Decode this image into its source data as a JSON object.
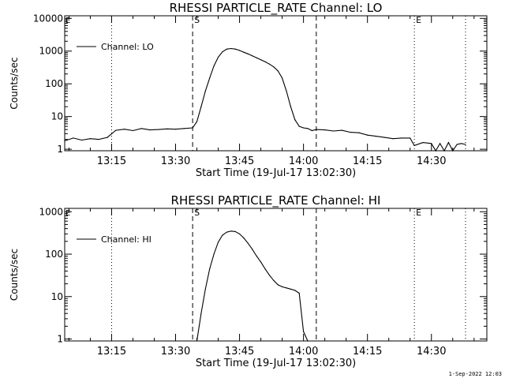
{
  "footer": {
    "timestamp": "1-Sep-2022 12:03"
  },
  "chart_data": [
    {
      "type": "line",
      "title": "RHESSI PARTICLE_RATE Channel: LO",
      "xlabel": "Start Time (19-Jul-17 13:02:30)",
      "ylabel": "Counts/sec",
      "yscale": "log",
      "ylim": [
        0.9,
        12000
      ],
      "xlim": [
        "13:04",
        "14:43"
      ],
      "x_ticks": [
        "13:15",
        "13:30",
        "13:45",
        "14:00",
        "14:15",
        "14:30"
      ],
      "y_ticks": [
        "1",
        "10",
        "100",
        "1000",
        "10000"
      ],
      "legend": {
        "position": "top-left",
        "entries": [
          "Channel: LO"
        ]
      },
      "markers": [
        {
          "label": "S",
          "time": "13:34",
          "style": "dashed"
        },
        {
          "time": "14:03",
          "style": "dashed"
        },
        {
          "time": "13:15",
          "style": "dotted"
        },
        {
          "label": "E",
          "time": "14:26",
          "style": "dotted"
        },
        {
          "time": "14:38",
          "style": "dotted"
        }
      ],
      "series": [
        {
          "name": "Channel: LO",
          "x": [
            "13:04",
            "13:06",
            "13:08",
            "13:10",
            "13:12",
            "13:14",
            "13:16",
            "13:18",
            "13:20",
            "13:22",
            "13:24",
            "13:26",
            "13:28",
            "13:30",
            "13:32",
            "13:34",
            "13:35",
            "13:36",
            "13:37",
            "13:38",
            "13:39",
            "13:40",
            "13:41",
            "13:42",
            "13:43",
            "13:44",
            "13:45",
            "13:46",
            "13:47",
            "13:48",
            "13:49",
            "13:50",
            "13:51",
            "13:52",
            "13:53",
            "13:54",
            "13:55",
            "13:56",
            "13:57",
            "13:58",
            "13:59",
            "14:00",
            "14:01",
            "14:02",
            "14:03",
            "14:05",
            "14:07",
            "14:09",
            "14:11",
            "14:13",
            "14:15",
            "14:17",
            "14:19",
            "14:21",
            "14:23",
            "14:25",
            "14:26",
            "14:28",
            "14:30",
            "14:31",
            "14:32",
            "14:33",
            "14:34",
            "14:35",
            "14:36",
            "14:37",
            "14:38"
          ],
          "y": [
            1.8,
            2.2,
            1.9,
            2.1,
            2.0,
            2.3,
            3.8,
            4.1,
            3.7,
            4.3,
            3.9,
            4.0,
            4.2,
            4.1,
            4.3,
            4.5,
            7,
            20,
            60,
            150,
            350,
            650,
            950,
            1150,
            1200,
            1150,
            1050,
            920,
            820,
            720,
            620,
            540,
            470,
            400,
            330,
            250,
            150,
            60,
            20,
            8,
            5,
            4.5,
            4.3,
            3.7,
            4.0,
            3.9,
            3.6,
            3.8,
            3.3,
            3.2,
            2.7,
            2.5,
            2.3,
            2.1,
            2.2,
            2.2,
            1.3,
            1.6,
            1.5,
            0.9,
            1.5,
            0.9,
            1.6,
            0.9,
            1.4,
            1.5,
            1.4
          ]
        }
      ]
    },
    {
      "type": "line",
      "title": "RHESSI PARTICLE_RATE Channel: HI",
      "xlabel": "Start Time (19-Jul-17 13:02:30)",
      "ylabel": "Counts/sec",
      "yscale": "log",
      "ylim": [
        0.9,
        1200
      ],
      "xlim": [
        "13:04",
        "14:43"
      ],
      "x_ticks": [
        "13:15",
        "13:30",
        "13:45",
        "14:00",
        "14:15",
        "14:30"
      ],
      "y_ticks": [
        "1",
        "10",
        "100",
        "1000"
      ],
      "legend": {
        "position": "top-left",
        "entries": [
          "Channel: HI"
        ]
      },
      "markers": [
        {
          "label": "S",
          "time": "13:34",
          "style": "dashed"
        },
        {
          "time": "14:03",
          "style": "dashed"
        },
        {
          "time": "13:15",
          "style": "dotted"
        },
        {
          "label": "E",
          "time": "14:26",
          "style": "dotted"
        },
        {
          "time": "14:38",
          "style": "dotted"
        }
      ],
      "series": [
        {
          "name": "Channel: HI",
          "x": [
            "13:35",
            "13:36",
            "13:37",
            "13:38",
            "13:39",
            "13:40",
            "13:41",
            "13:42",
            "13:43",
            "13:44",
            "13:45",
            "13:46",
            "13:47",
            "13:48",
            "13:49",
            "13:50",
            "13:51",
            "13:52",
            "13:53",
            "13:54",
            "13:55",
            "13:56",
            "13:57",
            "13:58",
            "13:59",
            "14:00",
            "14:01"
          ],
          "y": [
            0.9,
            4,
            15,
            45,
            100,
            190,
            280,
            330,
            350,
            340,
            300,
            240,
            180,
            130,
            90,
            65,
            45,
            32,
            24,
            19,
            17,
            16,
            15,
            14,
            12,
            1.5,
            0.9
          ]
        }
      ]
    }
  ]
}
